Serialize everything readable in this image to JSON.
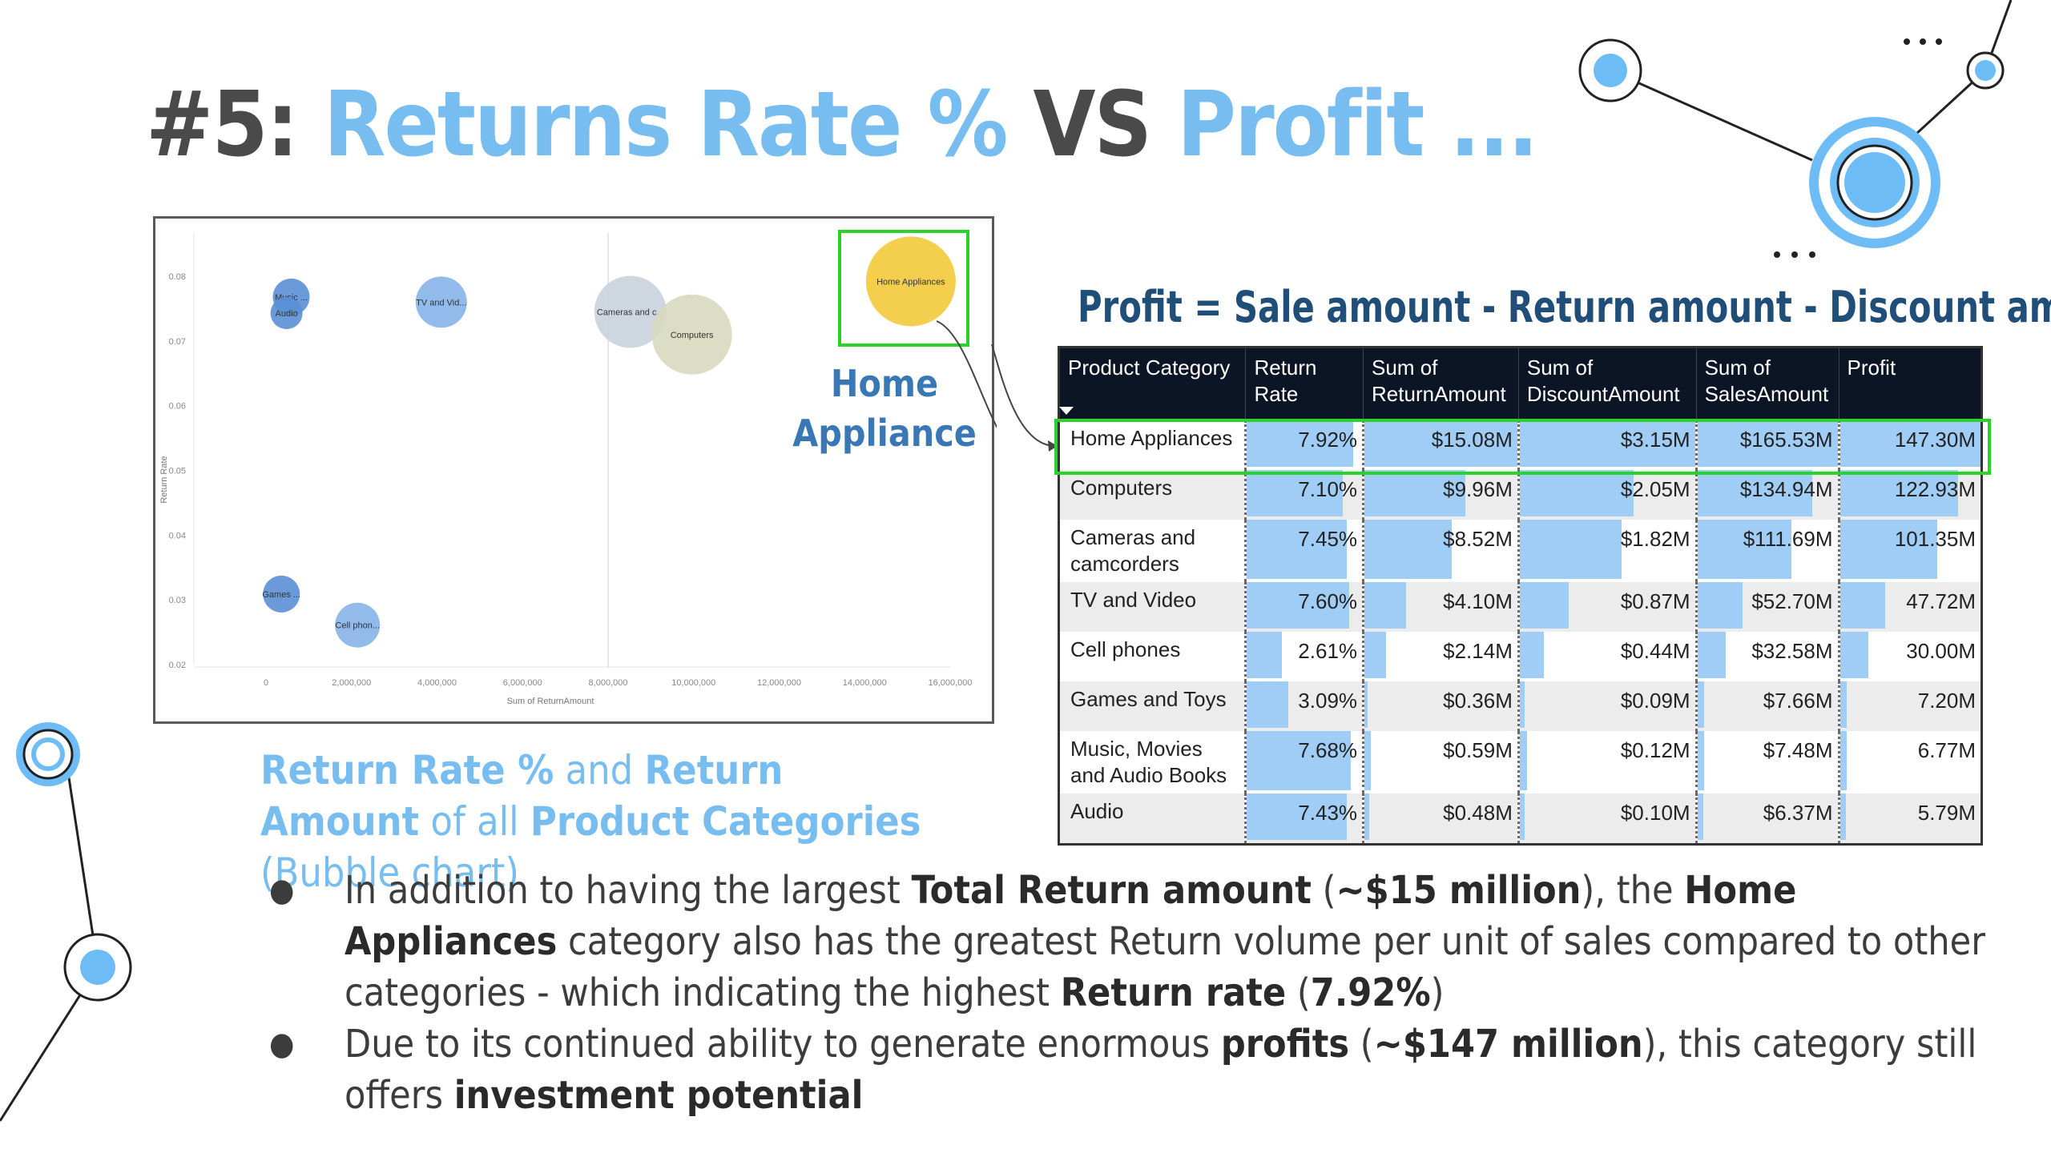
{
  "title": {
    "prefix": "#5:",
    "part1": "Returns Rate %",
    "vs": "VS",
    "part2": "Profit ..."
  },
  "bubble_chart": {
    "callout_line1": "Home",
    "callout_line2": "Appliance"
  },
  "caption": {
    "b1": "Return Rate %",
    "t1": " and ",
    "b2": "Return Amount",
    "t2": " of all ",
    "b3": "Product Categories",
    "t3": " (Bubble chart)"
  },
  "formula": "Profit = Sale amount - Return amount  - Discount amount",
  "table": {
    "headers": [
      "Product Category",
      "Return Rate",
      "Sum of ReturnAmount",
      "Sum of DiscountAmount",
      "Sum of SalesAmount",
      "Profit"
    ],
    "rows": [
      [
        "Home Appliances",
        "7.92%",
        "$15.08M",
        "$3.15M",
        "$165.53M",
        "147.30M"
      ],
      [
        "Computers",
        "7.10%",
        "$9.96M",
        "$2.05M",
        "$134.94M",
        "122.93M"
      ],
      [
        "Cameras and camcorders",
        "7.45%",
        "$8.52M",
        "$1.82M",
        "$111.69M",
        "101.35M"
      ],
      [
        "TV and Video",
        "7.60%",
        "$4.10M",
        "$0.87M",
        "$52.70M",
        "47.72M"
      ],
      [
        "Cell phones",
        "2.61%",
        "$2.14M",
        "$0.44M",
        "$32.58M",
        "30.00M"
      ],
      [
        "Games and Toys",
        "3.09%",
        "$0.36M",
        "$0.09M",
        "$7.66M",
        "7.20M"
      ],
      [
        "Music, Movies and Audio Books",
        "7.68%",
        "$0.59M",
        "$0.12M",
        "$7.48M",
        "6.77M"
      ],
      [
        "Audio",
        "7.43%",
        "$0.48M",
        "$0.10M",
        "$6.37M",
        "5.79M"
      ]
    ],
    "bar_fractions": [
      [
        0.92,
        1.0,
        1.0,
        1.0,
        1.0
      ],
      [
        0.83,
        0.66,
        0.65,
        0.82,
        0.84
      ],
      [
        0.87,
        0.57,
        0.58,
        0.67,
        0.69
      ],
      [
        0.89,
        0.27,
        0.28,
        0.32,
        0.32
      ],
      [
        0.3,
        0.14,
        0.14,
        0.2,
        0.2
      ],
      [
        0.36,
        0.02,
        0.03,
        0.05,
        0.05
      ],
      [
        0.9,
        0.04,
        0.04,
        0.05,
        0.05
      ],
      [
        0.87,
        0.03,
        0.03,
        0.04,
        0.04
      ]
    ]
  },
  "bullets": [
    {
      "t1": "In addition to having the largest ",
      "b1": "Total Return amount",
      "t2": " (",
      "b2": "~$15 million",
      "t3": "), the ",
      "b3": "Home Appliances",
      "t4": " category also has the greatest Return volume per unit of sales compared to other categories - which indicating the highest ",
      "b4": "Return rate",
      "t5": " (",
      "b5": "7.92%",
      "t6": ")"
    },
    {
      "t1": "Due to its continued ability to generate enormous ",
      "b1": "profits",
      "t2": "  (",
      "b2": "~$147 million",
      "t3": "), this category still offers ",
      "b3": "investment potential"
    }
  ],
  "chart_data": {
    "type": "scatter",
    "title": "",
    "xlabel": "Sum of ReturnAmount",
    "ylabel": "Return Rate",
    "xlim": [
      0,
      16000000
    ],
    "ylim": [
      0.02,
      0.08
    ],
    "xticks": [
      "0",
      "2,000,000",
      "4,000,000",
      "6,000,000",
      "8,000,000",
      "10,000,000",
      "12,000,000",
      "14,000,000",
      "16,000,000"
    ],
    "yticks": [
      "0.02",
      "0.03",
      "0.04",
      "0.05",
      "0.06",
      "0.07",
      "0.08"
    ],
    "points": [
      {
        "label": "Music ...",
        "x": 590000,
        "y": 0.0768,
        "color": "#5b8fd6"
      },
      {
        "label": "Audio",
        "x": 480000,
        "y": 0.0743,
        "color": "#5b8fd6"
      },
      {
        "label": "TV and Vid...",
        "x": 4100000,
        "y": 0.076,
        "color": "#86b3e8"
      },
      {
        "label": "Cameras and c...",
        "x": 8520000,
        "y": 0.0745,
        "color": "#c9d3dd"
      },
      {
        "label": "Computers",
        "x": 9960000,
        "y": 0.071,
        "color": "#d8d9bf"
      },
      {
        "label": "Home Appliances",
        "x": 15080000,
        "y": 0.0792,
        "color": "#f2ca3a"
      },
      {
        "label": "Games ...",
        "x": 360000,
        "y": 0.0309,
        "color": "#5b8fd6"
      },
      {
        "label": "Cell phon...",
        "x": 2140000,
        "y": 0.0261,
        "color": "#86b3e8"
      }
    ]
  }
}
